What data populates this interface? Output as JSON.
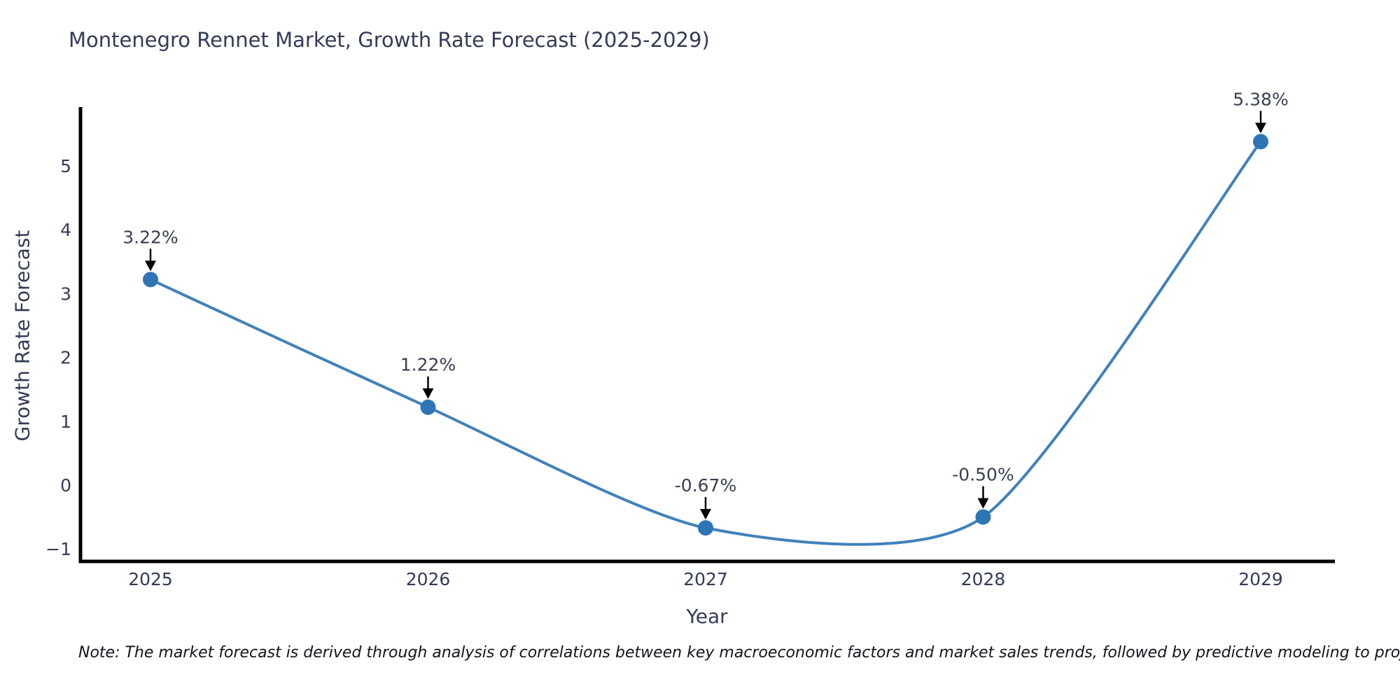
{
  "title": "Montenegro Rennet Market, Growth Rate Forecast (2025-2029)",
  "note": "Note: The market forecast is derived through analysis of correlations between key macroeconomic factors and market sales trends, followed by predictive modeling to project future sales",
  "chart_data": {
    "type": "line",
    "title": "Montenegro Rennet Market, Growth Rate Forecast (2025-2029)",
    "xlabel": "Year",
    "ylabel": "Growth Rate Forecast",
    "categories": [
      "2025",
      "2026",
      "2027",
      "2028",
      "2029"
    ],
    "values": [
      3.22,
      1.22,
      -0.67,
      -0.5,
      5.38
    ],
    "point_labels": [
      "3.22%",
      "1.22%",
      "-0.67%",
      "-0.50%",
      "5.38%"
    ],
    "yticks": [
      -1,
      0,
      1,
      2,
      3,
      4,
      5
    ],
    "ylim": [
      -1.2,
      5.95
    ],
    "line_shape": "spline",
    "grid": false,
    "legend": "none",
    "marker": "circle",
    "annotation_style": "label-with-down-arrow",
    "colors": {
      "line": "#4181bb",
      "marker": "#2e75b6",
      "arrow": "#000000",
      "annotation_text": "#3a3f52",
      "tick_text": "#353b56",
      "axis": "#000000",
      "title_text": "#353b56"
    }
  }
}
